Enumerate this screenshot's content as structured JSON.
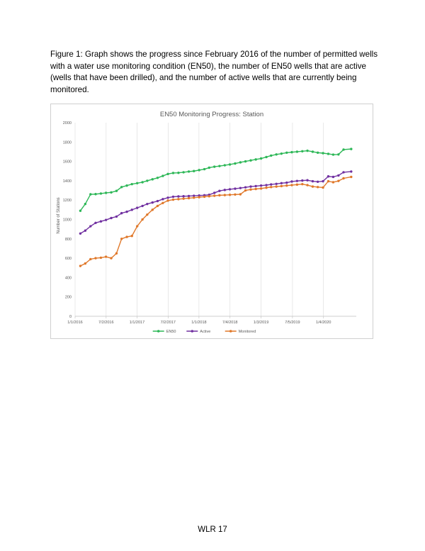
{
  "caption": "Figure 1: Graph shows the progress since February 2016 of the number of permitted wells with a water use monitoring condition (EN50), the number of EN50 wells that are active (wells that have been drilled), and the number of active wells that are currently being monitored.",
  "footer": {
    "page_label": "WLR 17"
  },
  "chart_data": {
    "type": "line",
    "title": "EN50 Monitoring Progress: Station",
    "xlabel": "",
    "ylabel": "Number of Stations",
    "ylim": [
      0,
      2000
    ],
    "y_ticks": [
      0,
      200,
      400,
      600,
      800,
      1000,
      1200,
      1400,
      1600,
      1800,
      2000
    ],
    "x_range": [
      "2016-01-01",
      "2020-07-15"
    ],
    "x_ticks": [
      {
        "date": "2016-01-01",
        "label": "1/1/2016"
      },
      {
        "date": "2016-07-02",
        "label": "7/2/2016"
      },
      {
        "date": "2016-12-31",
        "label": "1/1/2017"
      },
      {
        "date": "2017-07-02",
        "label": "7/2/2017"
      },
      {
        "date": "2017-12-31",
        "label": "1/1/2018"
      },
      {
        "date": "2018-07-02",
        "label": "7/4/2018"
      },
      {
        "date": "2019-01-01",
        "label": "1/3/2019"
      },
      {
        "date": "2019-07-05",
        "label": "7/5/2019"
      },
      {
        "date": "2020-01-04",
        "label": "1/4/2020"
      }
    ],
    "grid": "vertical",
    "legend": "bottom",
    "series": [
      {
        "name": "EN50",
        "color": "#2db757",
        "points": [
          [
            "2016-02-01",
            1090
          ],
          [
            "2016-03-01",
            1160
          ],
          [
            "2016-04-01",
            1260
          ],
          [
            "2016-05-01",
            1262
          ],
          [
            "2016-06-01",
            1268
          ],
          [
            "2016-07-01",
            1275
          ],
          [
            "2016-08-01",
            1280
          ],
          [
            "2016-09-01",
            1295
          ],
          [
            "2016-10-01",
            1335
          ],
          [
            "2016-11-01",
            1350
          ],
          [
            "2016-12-01",
            1365
          ],
          [
            "2017-01-01",
            1375
          ],
          [
            "2017-02-01",
            1385
          ],
          [
            "2017-03-01",
            1400
          ],
          [
            "2017-04-01",
            1415
          ],
          [
            "2017-05-01",
            1430
          ],
          [
            "2017-06-01",
            1450
          ],
          [
            "2017-07-01",
            1470
          ],
          [
            "2017-08-01",
            1480
          ],
          [
            "2017-09-01",
            1482
          ],
          [
            "2017-10-01",
            1488
          ],
          [
            "2017-11-01",
            1495
          ],
          [
            "2017-12-01",
            1500
          ],
          [
            "2018-01-01",
            1510
          ],
          [
            "2018-02-01",
            1520
          ],
          [
            "2018-03-01",
            1535
          ],
          [
            "2018-04-01",
            1545
          ],
          [
            "2018-05-01",
            1552
          ],
          [
            "2018-06-01",
            1560
          ],
          [
            "2018-07-01",
            1568
          ],
          [
            "2018-08-01",
            1578
          ],
          [
            "2018-09-01",
            1590
          ],
          [
            "2018-10-01",
            1600
          ],
          [
            "2018-11-01",
            1610
          ],
          [
            "2018-12-01",
            1620
          ],
          [
            "2019-01-01",
            1630
          ],
          [
            "2019-02-01",
            1645
          ],
          [
            "2019-03-01",
            1660
          ],
          [
            "2019-04-01",
            1672
          ],
          [
            "2019-05-01",
            1680
          ],
          [
            "2019-06-01",
            1690
          ],
          [
            "2019-07-01",
            1695
          ],
          [
            "2019-08-01",
            1700
          ],
          [
            "2019-09-01",
            1705
          ],
          [
            "2019-10-01",
            1710
          ],
          [
            "2019-11-01",
            1700
          ],
          [
            "2019-12-01",
            1690
          ],
          [
            "2020-01-01",
            1685
          ],
          [
            "2020-02-01",
            1678
          ],
          [
            "2020-03-01",
            1670
          ],
          [
            "2020-04-01",
            1672
          ],
          [
            "2020-05-01",
            1722
          ],
          [
            "2020-06-15",
            1728
          ]
        ]
      },
      {
        "name": "Active",
        "color": "#7030a0",
        "points": [
          [
            "2016-02-01",
            855
          ],
          [
            "2016-03-01",
            885
          ],
          [
            "2016-04-01",
            930
          ],
          [
            "2016-05-01",
            965
          ],
          [
            "2016-06-01",
            980
          ],
          [
            "2016-07-01",
            995
          ],
          [
            "2016-08-01",
            1015
          ],
          [
            "2016-09-01",
            1030
          ],
          [
            "2016-10-01",
            1065
          ],
          [
            "2016-11-01",
            1080
          ],
          [
            "2016-12-01",
            1100
          ],
          [
            "2017-01-01",
            1120
          ],
          [
            "2017-02-01",
            1140
          ],
          [
            "2017-03-01",
            1160
          ],
          [
            "2017-04-01",
            1175
          ],
          [
            "2017-05-01",
            1190
          ],
          [
            "2017-06-01",
            1210
          ],
          [
            "2017-07-01",
            1225
          ],
          [
            "2017-08-01",
            1235
          ],
          [
            "2017-09-01",
            1238
          ],
          [
            "2017-10-01",
            1240
          ],
          [
            "2017-11-01",
            1242
          ],
          [
            "2017-12-01",
            1245
          ],
          [
            "2018-01-01",
            1248
          ],
          [
            "2018-02-01",
            1250
          ],
          [
            "2018-03-01",
            1255
          ],
          [
            "2018-04-01",
            1275
          ],
          [
            "2018-05-01",
            1295
          ],
          [
            "2018-06-01",
            1305
          ],
          [
            "2018-07-01",
            1312
          ],
          [
            "2018-08-01",
            1318
          ],
          [
            "2018-09-01",
            1325
          ],
          [
            "2018-10-01",
            1332
          ],
          [
            "2018-11-01",
            1340
          ],
          [
            "2018-12-01",
            1345
          ],
          [
            "2019-01-01",
            1350
          ],
          [
            "2019-02-01",
            1355
          ],
          [
            "2019-03-01",
            1362
          ],
          [
            "2019-04-01",
            1368
          ],
          [
            "2019-05-01",
            1375
          ],
          [
            "2019-06-01",
            1380
          ],
          [
            "2019-07-01",
            1392
          ],
          [
            "2019-08-01",
            1398
          ],
          [
            "2019-09-01",
            1402
          ],
          [
            "2019-10-01",
            1405
          ],
          [
            "2019-11-01",
            1395
          ],
          [
            "2019-12-01",
            1390
          ],
          [
            "2020-01-01",
            1395
          ],
          [
            "2020-02-01",
            1445
          ],
          [
            "2020-03-01",
            1440
          ],
          [
            "2020-04-01",
            1455
          ],
          [
            "2020-05-01",
            1488
          ],
          [
            "2020-06-15",
            1495
          ]
        ]
      },
      {
        "name": "Monitored",
        "color": "#e0782a",
        "points": [
          [
            "2016-02-01",
            520
          ],
          [
            "2016-03-01",
            545
          ],
          [
            "2016-04-01",
            590
          ],
          [
            "2016-05-01",
            600
          ],
          [
            "2016-06-01",
            605
          ],
          [
            "2016-07-01",
            615
          ],
          [
            "2016-08-01",
            600
          ],
          [
            "2016-09-01",
            650
          ],
          [
            "2016-10-01",
            800
          ],
          [
            "2016-11-01",
            820
          ],
          [
            "2016-12-01",
            830
          ],
          [
            "2017-01-01",
            930
          ],
          [
            "2017-02-01",
            1000
          ],
          [
            "2017-03-01",
            1050
          ],
          [
            "2017-04-01",
            1100
          ],
          [
            "2017-05-01",
            1140
          ],
          [
            "2017-06-01",
            1170
          ],
          [
            "2017-07-01",
            1195
          ],
          [
            "2017-08-01",
            1205
          ],
          [
            "2017-09-01",
            1210
          ],
          [
            "2017-10-01",
            1215
          ],
          [
            "2017-11-01",
            1220
          ],
          [
            "2017-12-01",
            1225
          ],
          [
            "2018-01-01",
            1230
          ],
          [
            "2018-02-01",
            1235
          ],
          [
            "2018-03-01",
            1240
          ],
          [
            "2018-04-01",
            1245
          ],
          [
            "2018-05-01",
            1250
          ],
          [
            "2018-06-01",
            1252
          ],
          [
            "2018-07-01",
            1255
          ],
          [
            "2018-08-01",
            1258
          ],
          [
            "2018-09-01",
            1260
          ],
          [
            "2018-10-01",
            1300
          ],
          [
            "2018-11-01",
            1310
          ],
          [
            "2018-12-01",
            1315
          ],
          [
            "2019-01-01",
            1320
          ],
          [
            "2019-02-01",
            1328
          ],
          [
            "2019-03-01",
            1335
          ],
          [
            "2019-04-01",
            1340
          ],
          [
            "2019-05-01",
            1345
          ],
          [
            "2019-06-01",
            1350
          ],
          [
            "2019-07-01",
            1355
          ],
          [
            "2019-08-01",
            1360
          ],
          [
            "2019-09-01",
            1365
          ],
          [
            "2019-10-01",
            1355
          ],
          [
            "2019-11-01",
            1340
          ],
          [
            "2019-12-01",
            1335
          ],
          [
            "2020-01-01",
            1330
          ],
          [
            "2020-02-01",
            1395
          ],
          [
            "2020-03-01",
            1385
          ],
          [
            "2020-04-01",
            1398
          ],
          [
            "2020-05-01",
            1425
          ],
          [
            "2020-06-15",
            1440
          ]
        ]
      }
    ]
  }
}
